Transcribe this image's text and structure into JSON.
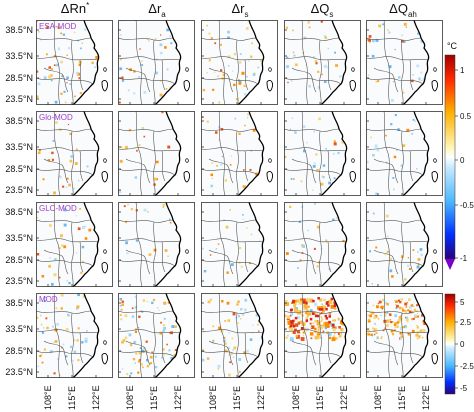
{
  "chart_data": {
    "type": "heatmap",
    "columns": [
      {
        "main": "ΔRn",
        "sub": "",
        "sup": "*"
      },
      {
        "main": "Δr",
        "sub": "a",
        "sup": ""
      },
      {
        "main": "Δr",
        "sub": "s",
        "sup": ""
      },
      {
        "main": "ΔQ",
        "sub": "s",
        "sup": ""
      },
      {
        "main": "ΔQ",
        "sub": "ah",
        "sup": ""
      }
    ],
    "rows": [
      "ESA-MOD",
      "Glo-MOD",
      "GLC-MOD",
      "MOD"
    ],
    "lat_ticks": [
      "38.5°N",
      "33.5°N",
      "28.5°N",
      "23.5°N"
    ],
    "lon_ticks": [
      "108°E",
      "115°E",
      "122°E"
    ],
    "colorbar_top": {
      "unit": "°C",
      "range": [
        -1,
        1
      ],
      "ticks": [
        "1",
        "0.5",
        "0",
        "-0.5",
        "-1"
      ]
    },
    "colorbar_bottom": {
      "range": [
        -5,
        5
      ],
      "ticks": [
        "5",
        "2.5",
        "0",
        "-2.5",
        "-5"
      ]
    },
    "colors": {
      "positive": "#e8541a",
      "negative": "#2a6fd6",
      "land": "#ffffff",
      "boundary": "#555555",
      "coast": "#000000"
    }
  }
}
